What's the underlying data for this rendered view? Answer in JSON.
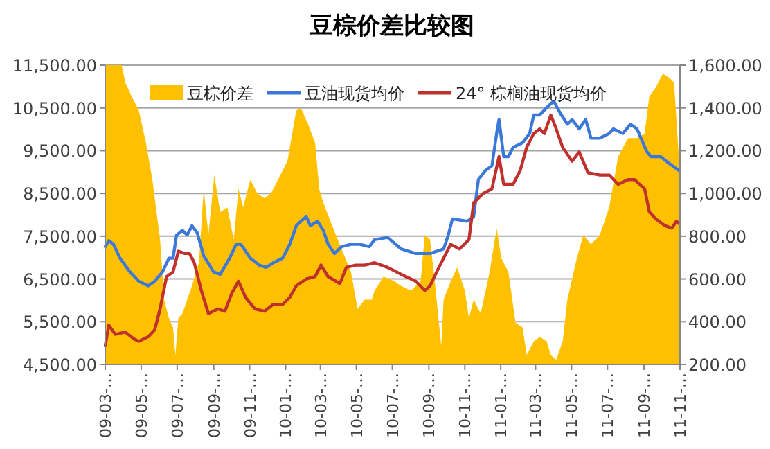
{
  "chart_data": {
    "type": "line",
    "title": "豆棕价差比较图",
    "xlim": [
      "2009-03-01",
      "2011-11-01"
    ],
    "xticks": [
      {
        "value": "2009-03-01",
        "label": "09-03-…"
      },
      {
        "value": "2009-05-01",
        "label": "09-05-…"
      },
      {
        "value": "2009-07-01",
        "label": "09-07-…"
      },
      {
        "value": "2009-09-01",
        "label": "09-09-…"
      },
      {
        "value": "2009-11-01",
        "label": "09-11-…"
      },
      {
        "value": "2010-01-01",
        "label": "10-01-…"
      },
      {
        "value": "2010-03-01",
        "label": "10-03-…"
      },
      {
        "value": "2010-05-01",
        "label": "10-05-…"
      },
      {
        "value": "2010-07-01",
        "label": "10-07-…"
      },
      {
        "value": "2010-09-01",
        "label": "10-09-…"
      },
      {
        "value": "2010-11-01",
        "label": "10-11-…"
      },
      {
        "value": "2011-01-01",
        "label": "11-01-…"
      },
      {
        "value": "2011-03-01",
        "label": "11-03-…"
      },
      {
        "value": "2011-05-01",
        "label": "11-05-…"
      },
      {
        "value": "2011-07-01",
        "label": "11-07-…"
      },
      {
        "value": "2011-09-01",
        "label": "11-09-…"
      },
      {
        "value": "2011-11-01",
        "label": "11-11-…"
      }
    ],
    "ylim": [
      4500,
      11500
    ],
    "yticks": [
      {
        "value": 4500,
        "label": "4,500.00"
      },
      {
        "value": 5500,
        "label": "5,500.00"
      },
      {
        "value": 6500,
        "label": "6,500.00"
      },
      {
        "value": 7500,
        "label": "7,500.00"
      },
      {
        "value": 8500,
        "label": "8,500.00"
      },
      {
        "value": 9500,
        "label": "9,500.00"
      },
      {
        "value": 10500,
        "label": "10,500.00"
      },
      {
        "value": 11500,
        "label": "11,500.00"
      }
    ],
    "y2lim": [
      200,
      1600
    ],
    "y2ticks": [
      {
        "value": 200,
        "label": "200.00"
      },
      {
        "value": 400,
        "label": "400.00"
      },
      {
        "value": 600,
        "label": "600.00"
      },
      {
        "value": 800,
        "label": "800.00"
      },
      {
        "value": 1000,
        "label": "1,000.00"
      },
      {
        "value": 1200,
        "label": "1,200.00"
      },
      {
        "value": 1400,
        "label": "1,400.00"
      },
      {
        "value": 1600,
        "label": "1,600.00"
      }
    ],
    "grid": "y",
    "legend": "top",
    "marker": "none",
    "line_style": "solid",
    "series": [
      {
        "name": "豆棕价差",
        "type": "area",
        "axis": "y2",
        "color": "#ffc000",
        "x": [
          "2009-03-01",
          "2009-03-29",
          "2009-04-04",
          "2009-04-15",
          "2009-04-27",
          "2009-05-09",
          "2009-05-20",
          "2009-06-02",
          "2009-06-09",
          "2009-06-17",
          "2009-06-24",
          "2009-06-28",
          "2009-07-03",
          "2009-07-10",
          "2009-07-18",
          "2009-07-26",
          "2009-08-07",
          "2009-08-15",
          "2009-08-23",
          "2009-09-02",
          "2009-09-12",
          "2009-09-24",
          "2009-10-05",
          "2009-10-13",
          "2009-10-21",
          "2009-11-02",
          "2009-11-14",
          "2009-11-26",
          "2009-12-07",
          "2009-12-19",
          "2010-01-04",
          "2010-01-19",
          "2010-01-27",
          "2010-02-08",
          "2010-02-20",
          "2010-02-27",
          "2010-03-06",
          "2010-03-21",
          "2010-04-06",
          "2010-04-22",
          "2010-05-03",
          "2010-05-15",
          "2010-05-27",
          "2010-06-01",
          "2010-06-16",
          "2010-07-05",
          "2010-07-16",
          "2010-08-02",
          "2010-08-18",
          "2010-08-25",
          "2010-09-03",
          "2010-09-11",
          "2010-09-22",
          "2010-09-26",
          "2010-10-08",
          "2010-10-19",
          "2010-11-01",
          "2010-11-08",
          "2010-11-16",
          "2010-11-28",
          "2010-12-13",
          "2010-12-25",
          "2011-01-02",
          "2011-01-14",
          "2011-01-26",
          "2011-02-07",
          "2011-02-14",
          "2011-02-26",
          "2011-03-08",
          "2011-03-20",
          "2011-03-27",
          "2011-04-05",
          "2011-04-16",
          "2011-04-24",
          "2011-05-10",
          "2011-05-21",
          "2011-06-03",
          "2011-06-18",
          "2011-07-04",
          "2011-07-19",
          "2011-08-05",
          "2011-08-20",
          "2011-09-02",
          "2011-09-10",
          "2011-09-21",
          "2011-10-03",
          "2011-10-14",
          "2011-10-22",
          "2011-10-30"
        ],
        "values": [
          1600,
          1600,
          1518,
          1453,
          1388,
          1237,
          1064,
          784,
          503,
          416,
          373,
          244,
          416,
          438,
          503,
          567,
          676,
          1021,
          805,
          1086,
          913,
          935,
          784,
          1021,
          935,
          1064,
          1000,
          978,
          1000,
          1064,
          1151,
          1388,
          1399,
          1324,
          1237,
          1021,
          956,
          848,
          740,
          632,
          460,
          503,
          503,
          546,
          611,
          589,
          567,
          546,
          589,
          805,
          784,
          589,
          287,
          503,
          589,
          654,
          546,
          416,
          503,
          438,
          632,
          837,
          697,
          632,
          395,
          373,
          244,
          308,
          330,
          308,
          244,
          222,
          308,
          503,
          697,
          805,
          762,
          805,
          935,
          1172,
          1259,
          1259,
          1280,
          1453,
          1496,
          1561,
          1540,
          1518,
          1172
        ]
      },
      {
        "name": "豆油现货均价",
        "axis": "y",
        "color": "#3c78d8",
        "x": [
          "2009-03-01",
          "2009-03-07",
          "2009-03-15",
          "2009-03-26",
          "2009-04-12",
          "2009-04-27",
          "2009-05-13",
          "2009-05-24",
          "2009-06-06",
          "2009-06-17",
          "2009-06-24",
          "2009-06-30",
          "2009-07-10",
          "2009-07-18",
          "2009-07-26",
          "2009-08-04",
          "2009-08-15",
          "2009-09-01",
          "2009-09-12",
          "2009-09-28",
          "2009-10-09",
          "2009-10-17",
          "2009-11-02",
          "2009-11-17",
          "2009-11-29",
          "2009-12-11",
          "2009-12-27",
          "2010-01-08",
          "2010-01-19",
          "2010-01-27",
          "2010-02-05",
          "2010-02-12",
          "2010-02-24",
          "2010-03-06",
          "2010-03-14",
          "2010-03-25",
          "2010-04-06",
          "2010-04-22",
          "2010-05-07",
          "2010-05-23",
          "2010-06-01",
          "2010-06-23",
          "2010-07-16",
          "2010-08-10",
          "2010-09-03",
          "2010-09-26",
          "2010-10-04",
          "2010-10-11",
          "2010-11-05",
          "2010-11-16",
          "2010-11-24",
          "2010-12-06",
          "2010-12-17",
          "2010-12-25",
          "2010-12-29",
          "2011-01-06",
          "2011-01-14",
          "2011-01-22",
          "2011-02-07",
          "2011-02-19",
          "2011-02-26",
          "2011-03-08",
          "2011-03-23",
          "2011-04-01",
          "2011-04-09",
          "2011-04-24",
          "2011-05-02",
          "2011-05-14",
          "2011-05-25",
          "2011-06-03",
          "2011-06-18",
          "2011-07-04",
          "2011-07-11",
          "2011-07-27",
          "2011-08-09",
          "2011-08-20",
          "2011-09-06",
          "2011-09-13",
          "2011-09-29",
          "2011-10-14",
          "2011-10-30"
        ],
        "values": [
          7256,
          7396,
          7310,
          6986,
          6662,
          6446,
          6338,
          6446,
          6662,
          6986,
          6986,
          7526,
          7634,
          7526,
          7742,
          7580,
          7040,
          6662,
          6608,
          6986,
          7310,
          7310,
          6986,
          6824,
          6770,
          6878,
          6986,
          7310,
          7742,
          7850,
          7958,
          7742,
          7850,
          7634,
          7310,
          7094,
          7256,
          7310,
          7310,
          7256,
          7418,
          7472,
          7202,
          7094,
          7094,
          7202,
          7526,
          7904,
          7850,
          7958,
          8822,
          9038,
          9146,
          9902,
          10226,
          9362,
          9362,
          9578,
          9686,
          9902,
          10334,
          10334,
          10550,
          10658,
          10442,
          10118,
          10226,
          10010,
          10226,
          9794,
          9794,
          9902,
          10010,
          9902,
          10118,
          10010,
          9470,
          9362,
          9362,
          9200,
          9038
        ]
      },
      {
        "name": "24°  棕榈油现货均价",
        "axis": "y",
        "color": "#c0302c",
        "x": [
          "2009-03-01",
          "2009-03-07",
          "2009-03-18",
          "2009-04-04",
          "2009-04-19",
          "2009-04-27",
          "2009-05-13",
          "2009-05-24",
          "2009-06-02",
          "2009-06-13",
          "2009-06-24",
          "2009-07-03",
          "2009-07-14",
          "2009-07-22",
          "2009-07-30",
          "2009-08-11",
          "2009-08-23",
          "2009-09-08",
          "2009-09-20",
          "2009-10-02",
          "2009-10-13",
          "2009-10-25",
          "2009-11-10",
          "2009-11-26",
          "2009-12-11",
          "2009-12-27",
          "2010-01-08",
          "2010-01-19",
          "2010-02-05",
          "2010-02-20",
          "2010-03-02",
          "2010-03-14",
          "2010-04-03",
          "2010-04-14",
          "2010-04-30",
          "2010-05-15",
          "2010-06-01",
          "2010-06-23",
          "2010-07-16",
          "2010-08-10",
          "2010-08-25",
          "2010-09-03",
          "2010-09-18",
          "2010-10-08",
          "2010-10-23",
          "2010-11-08",
          "2010-11-16",
          "2010-12-02",
          "2010-12-17",
          "2010-12-29",
          "2011-01-06",
          "2011-01-22",
          "2011-02-03",
          "2011-02-14",
          "2011-02-26",
          "2011-03-08",
          "2011-03-16",
          "2011-03-27",
          "2011-04-05",
          "2011-04-16",
          "2011-05-02",
          "2011-05-14",
          "2011-05-29",
          "2011-06-18",
          "2011-07-04",
          "2011-07-19",
          "2011-08-05",
          "2011-08-16",
          "2011-09-02",
          "2011-09-10",
          "2011-09-21",
          "2011-10-07",
          "2011-10-18",
          "2011-10-26",
          "2011-10-30"
        ],
        "values": [
          4934,
          5420,
          5204,
          5258,
          5096,
          5042,
          5150,
          5312,
          5798,
          6554,
          6662,
          7150,
          7094,
          7094,
          6878,
          6230,
          5690,
          5798,
          5744,
          6176,
          6446,
          6068,
          5798,
          5744,
          5906,
          5906,
          6068,
          6338,
          6500,
          6554,
          6824,
          6554,
          6392,
          6770,
          6824,
          6824,
          6878,
          6770,
          6608,
          6446,
          6230,
          6338,
          6770,
          7310,
          7202,
          7418,
          8282,
          8498,
          8606,
          9362,
          8714,
          8714,
          9038,
          9578,
          9902,
          10010,
          9902,
          10334,
          10010,
          9578,
          9254,
          9470,
          8984,
          8930,
          8930,
          8714,
          8822,
          8822,
          8606,
          8066,
          7904,
          7742,
          7688,
          7850,
          7796
        ]
      }
    ]
  }
}
